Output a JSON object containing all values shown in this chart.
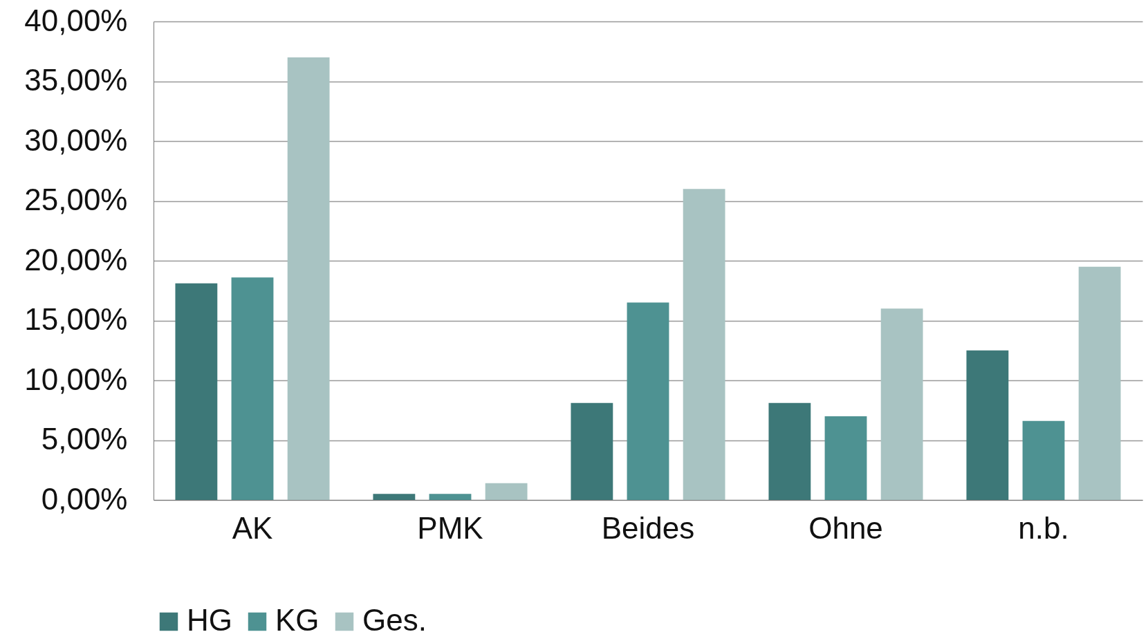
{
  "chart_data": {
    "type": "bar",
    "categories": [
      "AK",
      "PMK",
      "Beides",
      "Ohne",
      "n.b."
    ],
    "series": [
      {
        "name": "HG",
        "color": "#3d7878",
        "values": [
          18.1,
          0.5,
          8.1,
          8.1,
          12.5
        ]
      },
      {
        "name": "KG",
        "color": "#4e9292",
        "values": [
          18.6,
          0.5,
          16.5,
          7.0,
          6.6
        ]
      },
      {
        "name": "Ges.",
        "color": "#a8c3c2",
        "values": [
          37.0,
          1.4,
          26.0,
          16.0,
          19.5
        ]
      }
    ],
    "ylim": [
      0,
      40
    ],
    "yticks": [
      {
        "value": 0,
        "label": "0,00%"
      },
      {
        "value": 5,
        "label": "5,00%"
      },
      {
        "value": 10,
        "label": "10,00%"
      },
      {
        "value": 15,
        "label": "15,00%"
      },
      {
        "value": 20,
        "label": "20,00%"
      },
      {
        "value": 25,
        "label": "25,00%"
      },
      {
        "value": 30,
        "label": "30,00%"
      },
      {
        "value": 35,
        "label": "35,00%"
      },
      {
        "value": 40,
        "label": "40,00%"
      }
    ],
    "grid": "y",
    "legend": "bottom"
  }
}
